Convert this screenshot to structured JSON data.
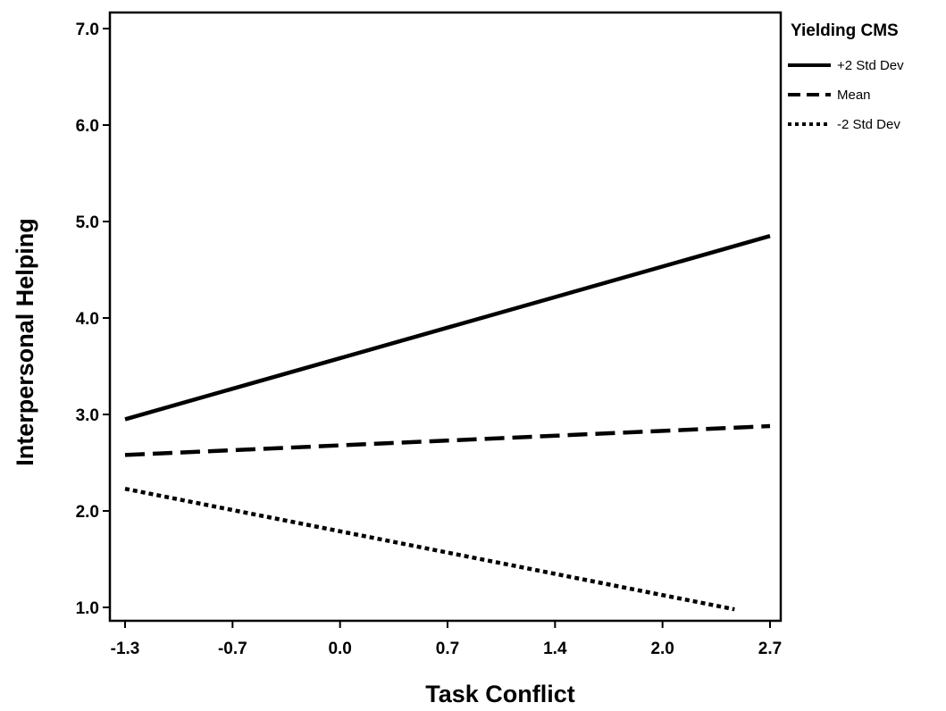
{
  "chart_data": {
    "type": "line",
    "xlabel": "Task Conflict",
    "ylabel": "Interpersonal Helping",
    "x_ticks": [
      "-1.3",
      "-0.7",
      "0.0",
      "0.7",
      "1.4",
      "2.0",
      "2.7"
    ],
    "y_ticks": [
      "1.0",
      "2.0",
      "3.0",
      "4.0",
      "5.0",
      "6.0",
      "7.0"
    ],
    "xlim": [
      -1.3,
      2.7
    ],
    "ylim": [
      1.0,
      7.0
    ],
    "legend_title": "Yielding CMS",
    "legend_position": "outside-top-right",
    "series": [
      {
        "name": "+2 Std Dev",
        "style": "solid",
        "color": "#000000",
        "x": [
          -1.3,
          2.7
        ],
        "y": [
          2.95,
          4.85
        ]
      },
      {
        "name": "Mean",
        "style": "dashed",
        "color": "#000000",
        "x": [
          -1.3,
          2.7
        ],
        "y": [
          2.58,
          2.88
        ]
      },
      {
        "name": "-2 Std Dev",
        "style": "dotted",
        "color": "#000000",
        "x": [
          -1.3,
          2.48
        ],
        "y": [
          2.23,
          0.98
        ]
      }
    ]
  }
}
